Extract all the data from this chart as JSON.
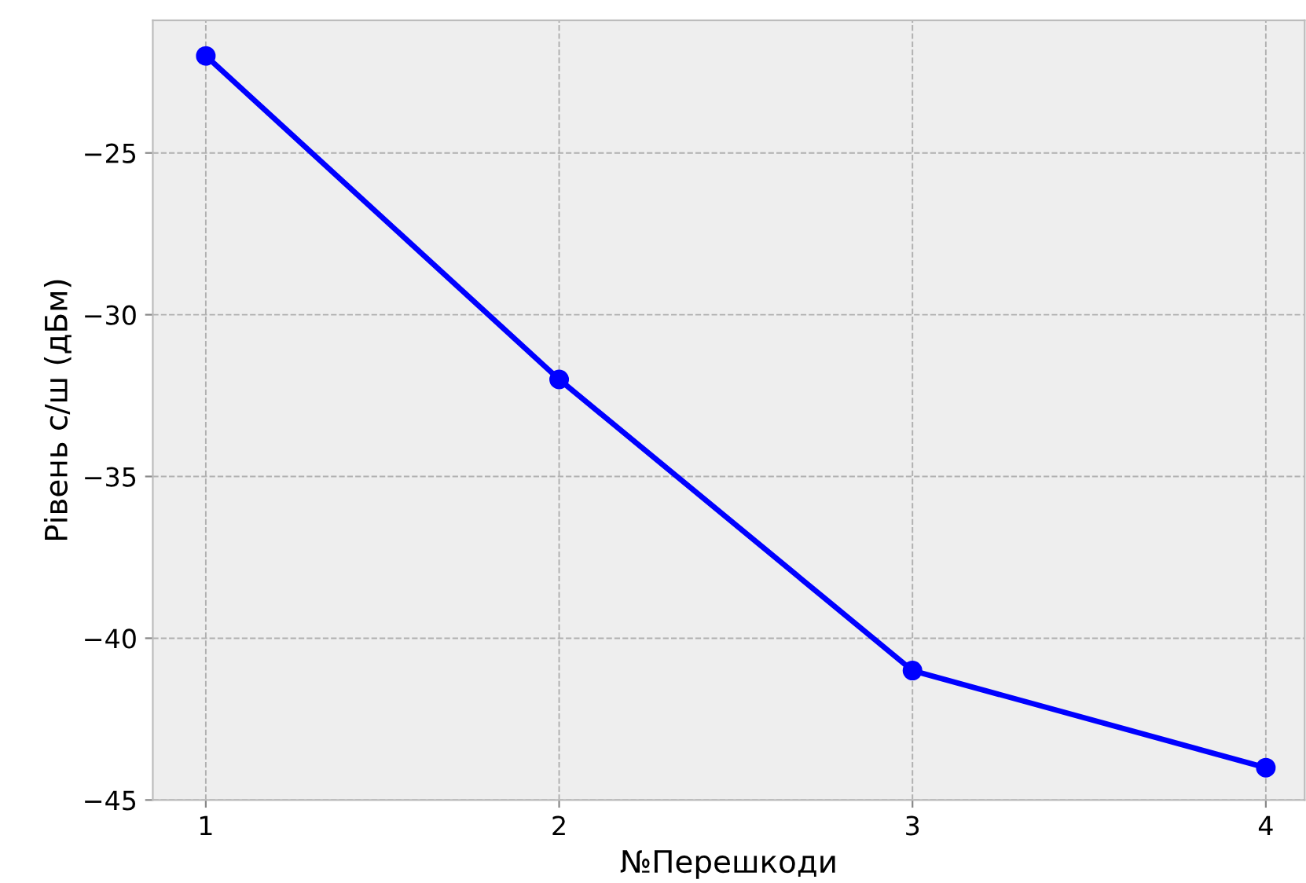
{
  "chart_data": {
    "type": "line",
    "xlabel": "№Перешкоди",
    "ylabel": "Рівень с/ш (дБм)",
    "x": [
      1,
      2,
      3,
      4
    ],
    "series": [
      {
        "color": "#0000ff",
        "values": [
          -22,
          -32,
          -41,
          -44
        ]
      }
    ],
    "xlim": [
      0.85,
      4.11
    ],
    "xticks": [
      1,
      2,
      3,
      4
    ],
    "ylim": [
      -45,
      -20.9
    ],
    "yticks": [
      {
        "value": -45,
        "label": "−45"
      },
      {
        "value": -40,
        "label": "−40"
      },
      {
        "value": -35,
        "label": "−35"
      },
      {
        "value": -30,
        "label": "−30"
      },
      {
        "value": -25,
        "label": "−25"
      }
    ],
    "grid": true,
    "marker": "circle",
    "line_style": "solid"
  }
}
